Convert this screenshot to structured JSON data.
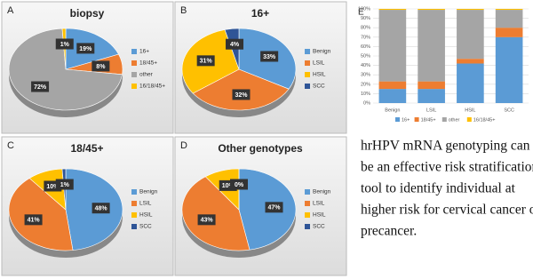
{
  "chart_data": [
    {
      "type": "pie",
      "label": "A",
      "title": "biopsy",
      "categories": [
        "16+",
        "18/45+",
        "other",
        "16/18/45+"
      ],
      "values": [
        19,
        8,
        72,
        1
      ],
      "value_labels": [
        "19%",
        "8%",
        "72%",
        "1%"
      ],
      "colors": [
        "#5b9bd5",
        "#ed7d31",
        "#a5a5a5",
        "#ffc000"
      ]
    },
    {
      "type": "pie",
      "label": "B",
      "title": "16+",
      "categories": [
        "Benign",
        "LSIL",
        "HSIL",
        "SCC"
      ],
      "values": [
        33,
        32,
        31,
        4
      ],
      "value_labels": [
        "33%",
        "32%",
        "31%",
        "4%"
      ],
      "colors": [
        "#5b9bd5",
        "#ed7d31",
        "#ffc000",
        "#2f5597"
      ]
    },
    {
      "type": "pie",
      "label": "C",
      "title": "18/45+",
      "categories": [
        "Benign",
        "LSIL",
        "HSIL",
        "SCC"
      ],
      "values": [
        48,
        41,
        10,
        1
      ],
      "value_labels": [
        "48%",
        "41%",
        "10%",
        "1%"
      ],
      "colors": [
        "#5b9bd5",
        "#ed7d31",
        "#ffc000",
        "#2f5597"
      ]
    },
    {
      "type": "pie",
      "label": "D",
      "title": "Other genotypes",
      "categories": [
        "Benign",
        "LSIL",
        "HSIL",
        "SCC"
      ],
      "values": [
        47,
        43,
        10,
        0
      ],
      "value_labels": [
        "47%",
        "43%",
        "10%",
        "0%"
      ],
      "colors": [
        "#5b9bd5",
        "#ed7d31",
        "#ffc000",
        "#2f5597"
      ]
    },
    {
      "type": "bar",
      "stacked": true,
      "label": "E",
      "categories": [
        "Benign",
        "LSIL",
        "HSIL",
        "SCC"
      ],
      "series": [
        {
          "name": "16+",
          "color": "#5b9bd5",
          "values": [
            15,
            15,
            42,
            70
          ]
        },
        {
          "name": "18/45+",
          "color": "#ed7d31",
          "values": [
            8,
            8,
            5,
            10
          ]
        },
        {
          "name": "other",
          "color": "#a5a5a5",
          "values": [
            76,
            76,
            52,
            19
          ]
        },
        {
          "name": "16/18/45+",
          "color": "#ffc000",
          "values": [
            1,
            1,
            1,
            1
          ]
        }
      ],
      "ylim": [
        0,
        100
      ],
      "yticks": [
        {
          "value": 0,
          "label": "0%"
        },
        {
          "value": 10,
          "label": "10%"
        },
        {
          "value": 20,
          "label": "20%"
        },
        {
          "value": 30,
          "label": "30%"
        },
        {
          "value": 40,
          "label": "40%"
        },
        {
          "value": 50,
          "label": "50%"
        },
        {
          "value": 60,
          "label": "60%"
        },
        {
          "value": 70,
          "label": "70%"
        },
        {
          "value": 80,
          "label": "80%"
        },
        {
          "value": 90,
          "label": "90%"
        },
        {
          "value": 100,
          "label": "100%"
        }
      ],
      "grid": true,
      "legend": "bottom"
    }
  ],
  "text": {
    "lines": [
      "hrHPV mRNA genotyping can",
      "be an effective risk stratification",
      "tool to identify individual at",
      "higher risk for cervical cancer or",
      "precancer."
    ]
  }
}
